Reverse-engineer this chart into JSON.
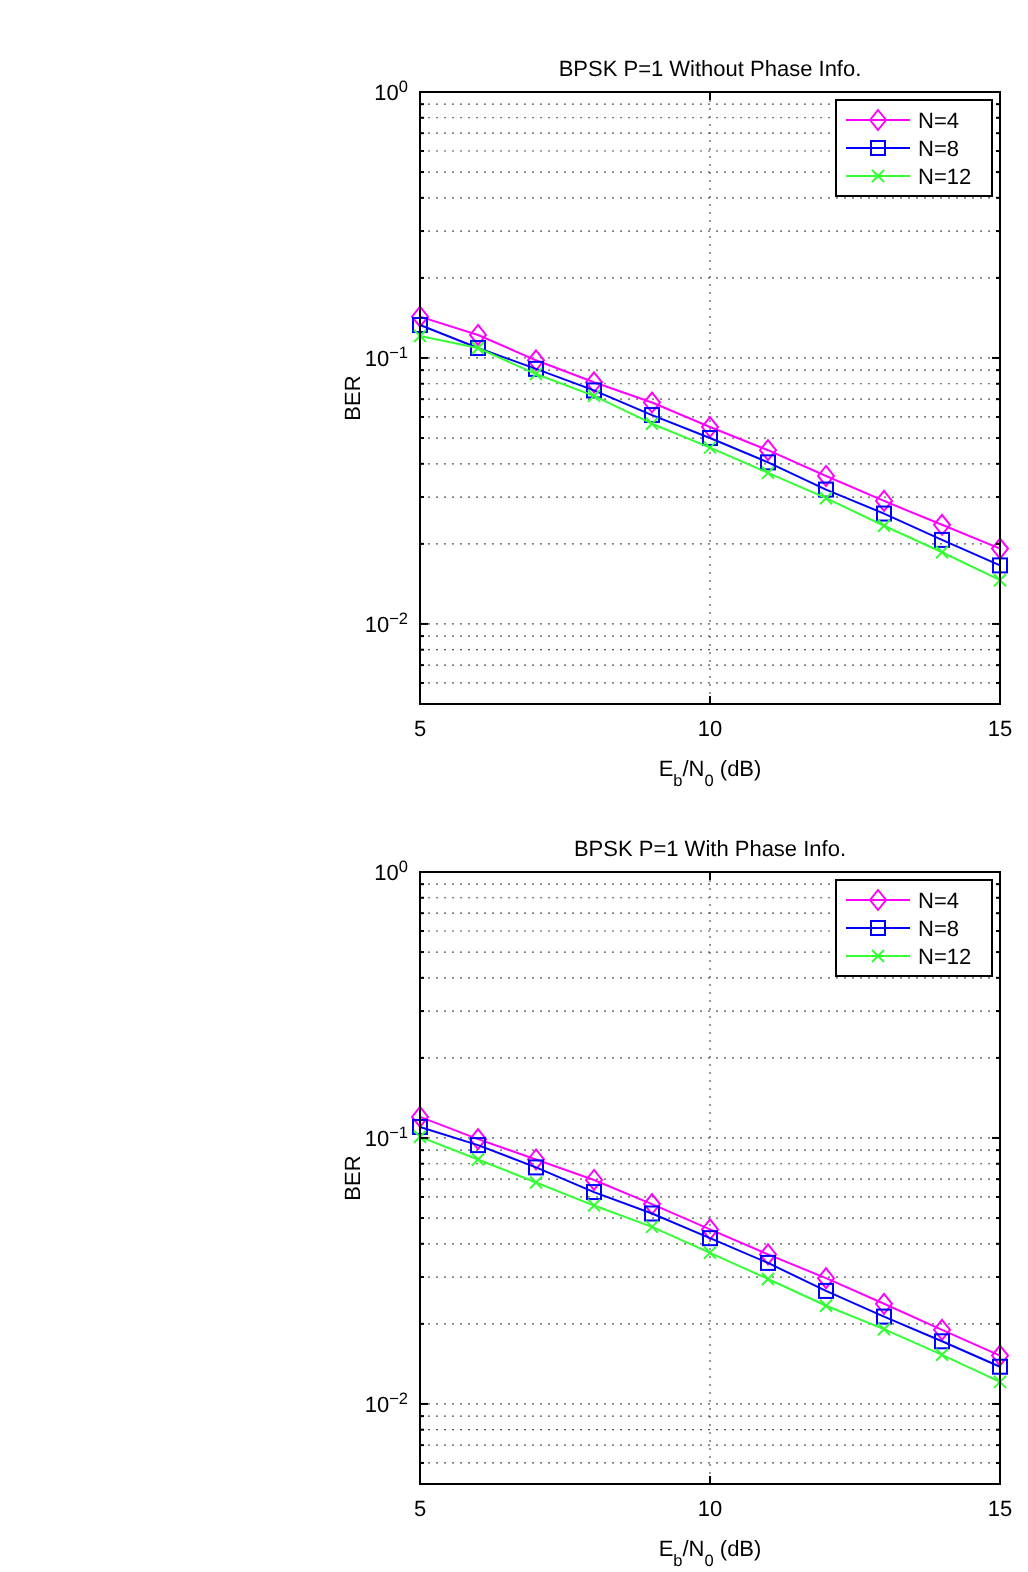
{
  "chart_data": [
    {
      "type": "line",
      "title": "BPSK P=1 Without Phase Info.",
      "xlabel": "E$_{b}$/N$_{0}$ (dB)",
      "ylabel": "BER",
      "log": "y",
      "grid": true,
      "legend": "top right",
      "xlim": [
        5,
        15
      ],
      "ylim": [
        0.005,
        1
      ],
      "xticks": [
        5,
        10,
        15
      ],
      "yticks": [
        {
          "value": 0.005,
          "label": null
        },
        {
          "value": 0.006,
          "label": null
        },
        {
          "value": 0.007,
          "label": null
        },
        {
          "value": 0.008,
          "label": null
        },
        {
          "value": 0.009,
          "label": null
        },
        {
          "value": 0.01,
          "label": "10$^{−2}$"
        },
        {
          "value": 0.02,
          "label": null
        },
        {
          "value": 0.03,
          "label": null
        },
        {
          "value": 0.04,
          "label": null
        },
        {
          "value": 0.05,
          "label": null
        },
        {
          "value": 0.06,
          "label": null
        },
        {
          "value": 0.07,
          "label": null
        },
        {
          "value": 0.08,
          "label": null
        },
        {
          "value": 0.09,
          "label": null
        },
        {
          "value": 0.1,
          "label": "10$^{−1}$"
        },
        {
          "value": 0.2,
          "label": null
        },
        {
          "value": 0.3,
          "label": null
        },
        {
          "value": 0.4,
          "label": null
        },
        {
          "value": 0.5,
          "label": null
        },
        {
          "value": 0.6,
          "label": null
        },
        {
          "value": 0.7,
          "label": null
        },
        {
          "value": 0.8,
          "label": null
        },
        {
          "value": 0.9,
          "label": null
        },
        {
          "value": 1,
          "label": "10$^{0}$"
        }
      ],
      "x": [
        5,
        6,
        7,
        8,
        9,
        10,
        11,
        12,
        13,
        14,
        15
      ],
      "series": [
        {
          "name": "N=4",
          "color": "#ff00ff",
          "marker": "diamond",
          "values": [
            0.143,
            0.122,
            0.098,
            0.081,
            0.068,
            0.055,
            0.045,
            0.036,
            0.029,
            0.0236,
            0.0192
          ]
        },
        {
          "name": "N=8",
          "color": "#0000ff",
          "marker": "square",
          "values": [
            0.133,
            0.109,
            0.091,
            0.0755,
            0.061,
            0.05,
            0.0405,
            0.032,
            0.026,
            0.0207,
            0.0166
          ]
        },
        {
          "name": "N=12",
          "color": "#33ff33",
          "marker": "cross",
          "values": [
            0.121,
            0.109,
            0.087,
            0.072,
            0.0566,
            0.046,
            0.037,
            0.0297,
            0.0234,
            0.0186,
            0.0146
          ]
        }
      ]
    },
    {
      "type": "line",
      "title": "BPSK P=1 With Phase Info.",
      "xlabel": "E$_{b}$/N$_{0}$ (dB)",
      "ylabel": "BER",
      "log": "y",
      "grid": true,
      "legend": "top right",
      "xlim": [
        5,
        15
      ],
      "ylim": [
        0.005,
        1
      ],
      "xticks": [
        5,
        10,
        15
      ],
      "yticks": [
        {
          "value": 0.005,
          "label": null
        },
        {
          "value": 0.006,
          "label": null
        },
        {
          "value": 0.007,
          "label": null
        },
        {
          "value": 0.008,
          "label": null
        },
        {
          "value": 0.009,
          "label": null
        },
        {
          "value": 0.01,
          "label": "10$^{−2}$"
        },
        {
          "value": 0.02,
          "label": null
        },
        {
          "value": 0.03,
          "label": null
        },
        {
          "value": 0.04,
          "label": null
        },
        {
          "value": 0.05,
          "label": null
        },
        {
          "value": 0.06,
          "label": null
        },
        {
          "value": 0.07,
          "label": null
        },
        {
          "value": 0.08,
          "label": null
        },
        {
          "value": 0.09,
          "label": null
        },
        {
          "value": 0.1,
          "label": "10$^{−1}$"
        },
        {
          "value": 0.2,
          "label": null
        },
        {
          "value": 0.3,
          "label": null
        },
        {
          "value": 0.4,
          "label": null
        },
        {
          "value": 0.5,
          "label": null
        },
        {
          "value": 0.6,
          "label": null
        },
        {
          "value": 0.7,
          "label": null
        },
        {
          "value": 0.8,
          "label": null
        },
        {
          "value": 0.9,
          "label": null
        },
        {
          "value": 1,
          "label": "10$^{0}$"
        }
      ],
      "x": [
        5,
        6,
        7,
        8,
        9,
        10,
        11,
        12,
        13,
        14,
        15
      ],
      "series": [
        {
          "name": "N=4",
          "color": "#ff00ff",
          "marker": "diamond",
          "values": [
            0.12,
            0.099,
            0.083,
            0.0695,
            0.0564,
            0.0453,
            0.0365,
            0.0297,
            0.0238,
            0.019,
            0.0152
          ]
        },
        {
          "name": "N=8",
          "color": "#0000ff",
          "marker": "square",
          "values": [
            0.11,
            0.094,
            0.0775,
            0.0626,
            0.052,
            0.042,
            0.0339,
            0.0266,
            0.0213,
            0.0172,
            0.0138
          ]
        },
        {
          "name": "N=12",
          "color": "#33ff33",
          "marker": "cross",
          "values": [
            0.101,
            0.083,
            0.068,
            0.0557,
            0.0463,
            0.037,
            0.0295,
            0.0234,
            0.0191,
            0.0153,
            0.0121
          ]
        }
      ]
    }
  ]
}
